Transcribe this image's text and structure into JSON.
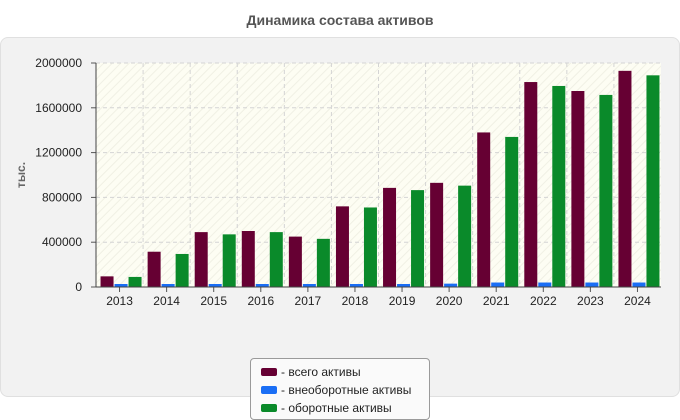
{
  "chart_data": {
    "type": "bar",
    "title": "Динамика состава активов",
    "ylabel": "тыс.",
    "xlabel": "",
    "ylim": [
      0,
      2000000
    ],
    "yticks": [
      0,
      400000,
      800000,
      1200000,
      1600000,
      2000000
    ],
    "ytick_labels": [
      "0",
      "400000",
      "800000",
      "1200000",
      "1600000",
      "2000000"
    ],
    "categories": [
      "2013",
      "2014",
      "2015",
      "2016",
      "2017",
      "2018",
      "2019",
      "2020",
      "2021",
      "2022",
      "2023",
      "2024"
    ],
    "series": [
      {
        "name": "- всего активы",
        "color": "#660033",
        "values": [
          95000,
          315000,
          490000,
          500000,
          450000,
          720000,
          885000,
          930000,
          1380000,
          1830000,
          1750000,
          1930000
        ]
      },
      {
        "name": "- внеоборотные активы",
        "color": "#1a6ef5",
        "values": [
          12000,
          20000,
          22000,
          22000,
          22000,
          25000,
          25000,
          30000,
          40000,
          40000,
          40000,
          40000
        ]
      },
      {
        "name": "- оборотные активы",
        "color": "#0a8a2a",
        "values": [
          90000,
          295000,
          470000,
          490000,
          430000,
          710000,
          865000,
          905000,
          1340000,
          1795000,
          1715000,
          1890000
        ]
      }
    ],
    "legend_position": "bottom-center",
    "grid": true
  }
}
